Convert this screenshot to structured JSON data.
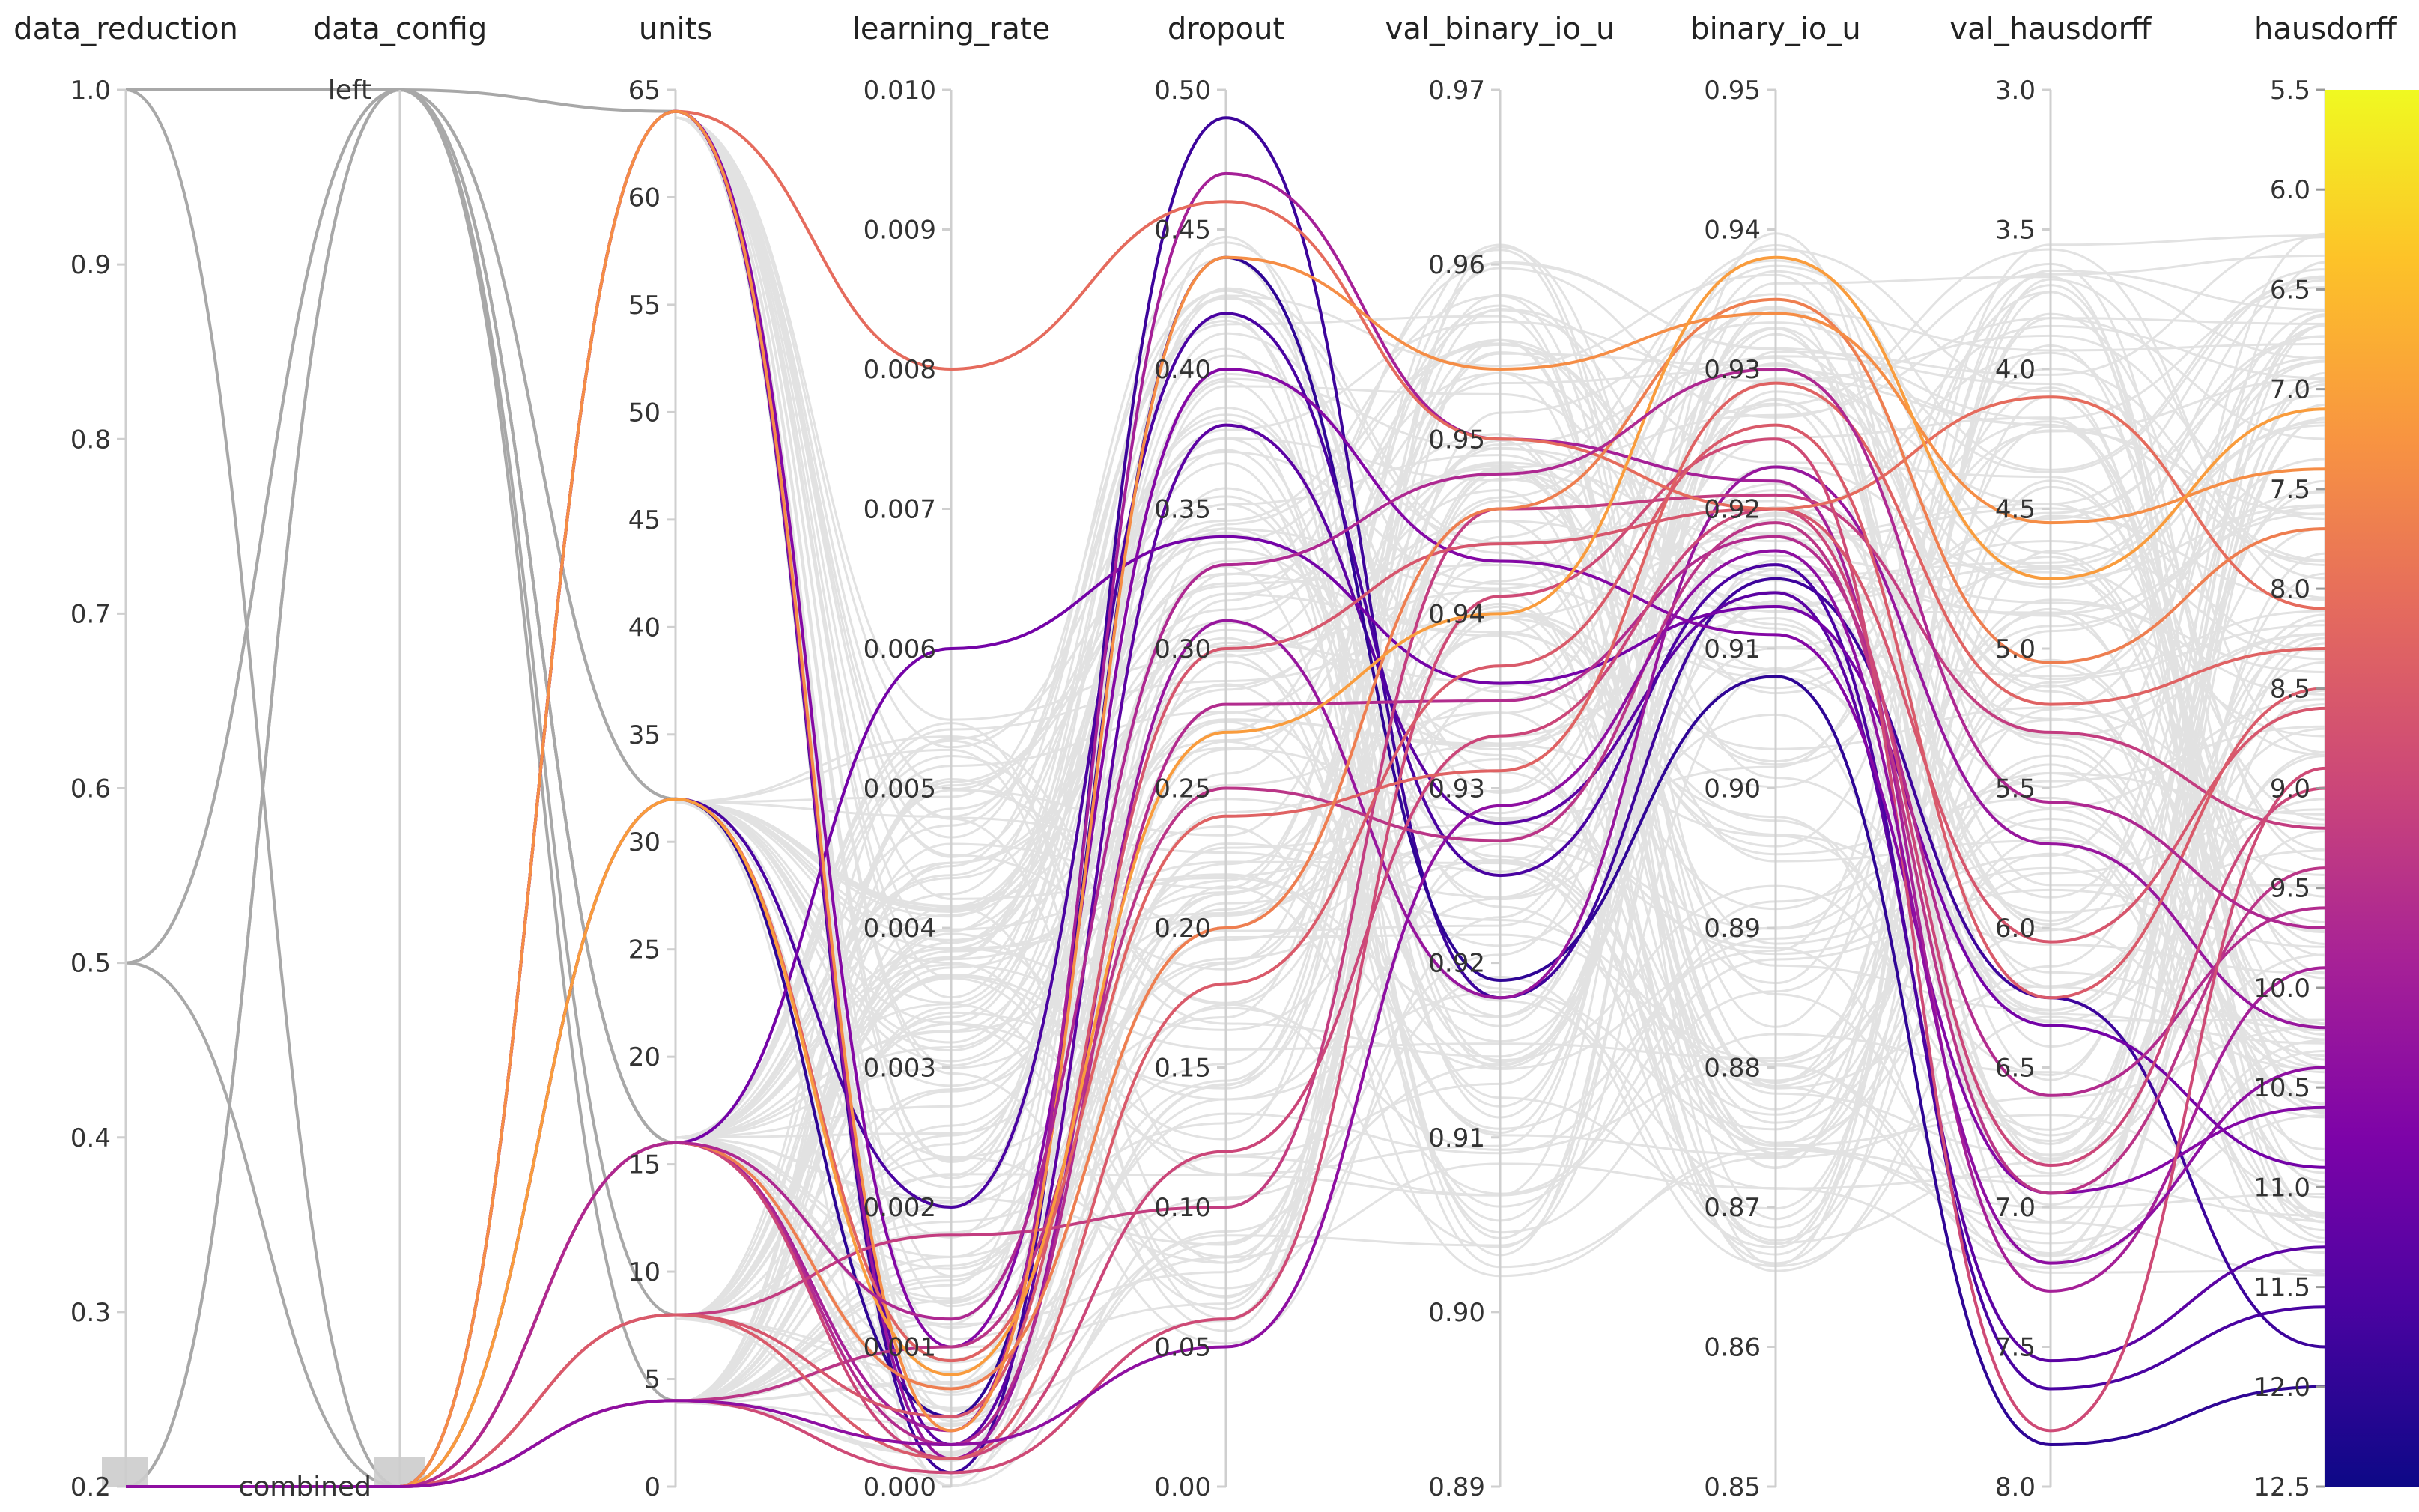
{
  "chart_data": {
    "type": "parallel_coordinates",
    "color_metric": "hausdorff",
    "colormap": "plasma",
    "colorbar_range": [
      5.5,
      12.5
    ],
    "axes": [
      {
        "key": "data_reduction",
        "title": "data_reduction",
        "domain": [
          0.2,
          1.0
        ],
        "ticks": [
          "1.0",
          "0.9",
          "0.8",
          "0.7",
          "0.6",
          "0.5",
          "0.4",
          "0.3",
          "0.2"
        ]
      },
      {
        "key": "data_config",
        "title": "data_config",
        "categorical": true,
        "categories": [
          "left",
          "combined"
        ]
      },
      {
        "key": "units",
        "title": "units",
        "domain": [
          0,
          65
        ],
        "ticks": [
          "65",
          "60",
          "55",
          "50",
          "45",
          "40",
          "35",
          "30",
          "25",
          "20",
          "15",
          "10",
          "5",
          "0"
        ]
      },
      {
        "key": "learning_rate",
        "title": "learning_rate",
        "domain": [
          0.0,
          0.01
        ],
        "ticks": [
          "0.010",
          "0.009",
          "0.008",
          "0.007",
          "0.006",
          "0.005",
          "0.004",
          "0.003",
          "0.002",
          "0.001",
          "0.000"
        ]
      },
      {
        "key": "dropout",
        "title": "dropout",
        "domain": [
          0.0,
          0.5
        ],
        "ticks": [
          "0.50",
          "0.45",
          "0.40",
          "0.35",
          "0.30",
          "0.25",
          "0.20",
          "0.15",
          "0.10",
          "0.05",
          "0.00"
        ]
      },
      {
        "key": "val_binary_io_u",
        "title": "val_binary_io_u",
        "domain": [
          0.89,
          0.97
        ],
        "ticks": [
          "0.97",
          "0.96",
          "0.95",
          "0.94",
          "0.93",
          "0.92",
          "0.91",
          "0.90",
          "0.89"
        ]
      },
      {
        "key": "binary_io_u",
        "title": "binary_io_u",
        "domain": [
          0.85,
          0.95
        ],
        "ticks": [
          "0.95",
          "0.94",
          "0.93",
          "0.92",
          "0.91",
          "0.90",
          "0.89",
          "0.88",
          "0.87",
          "0.86",
          "0.85"
        ]
      },
      {
        "key": "val_hausdorff",
        "title": "val_hausdorff",
        "domain": [
          3.0,
          8.0
        ],
        "inverted": true,
        "ticks": [
          "3.0",
          "3.5",
          "4.0",
          "4.5",
          "5.0",
          "5.5",
          "6.0",
          "6.5",
          "7.0",
          "7.5",
          "8.0"
        ]
      },
      {
        "key": "hausdorff",
        "title": "hausdorff",
        "domain": [
          5.5,
          12.5
        ],
        "inverted": true,
        "ticks": [
          "5.5",
          "6.0",
          "6.5",
          "7.0",
          "7.5",
          "8.0",
          "8.5",
          "9.0",
          "9.5",
          "10.0",
          "10.5",
          "11.0",
          "11.5",
          "12.0",
          "12.5"
        ]
      }
    ],
    "highlighted_runs": [
      [
        0.2,
        "combined",
        64,
        0.0001,
        0.49,
        0.918,
        0.915,
        6.25,
        11.8
      ],
      [
        0.2,
        "combined",
        64,
        0.0003,
        0.38,
        0.928,
        0.914,
        7.55,
        11.3
      ],
      [
        0.2,
        "combined",
        32,
        0.0005,
        0.44,
        0.919,
        0.908,
        7.85,
        12.0
      ],
      [
        0.2,
        "combined",
        32,
        0.002,
        0.42,
        0.925,
        0.916,
        7.65,
        11.6
      ],
      [
        0.2,
        "combined",
        16,
        0.006,
        0.34,
        0.936,
        0.913,
        6.35,
        10.9
      ],
      [
        0.2,
        "combined",
        64,
        0.001,
        0.4,
        0.943,
        0.911,
        6.95,
        10.6
      ],
      [
        0.2,
        "combined",
        16,
        0.0004,
        0.47,
        0.95,
        0.922,
        7.3,
        9.9
      ],
      [
        0.2,
        "combined",
        64,
        0.0002,
        0.31,
        0.918,
        0.923,
        5.7,
        10.2
      ],
      [
        0.2,
        "combined",
        16,
        0.0003,
        0.28,
        0.935,
        0.918,
        6.6,
        9.6
      ],
      [
        0.2,
        "combined",
        4,
        0.001,
        0.25,
        0.927,
        0.919,
        6.95,
        9.4
      ],
      [
        0.2,
        "combined",
        8,
        0.0018,
        0.1,
        0.946,
        0.921,
        5.3,
        9.2
      ],
      [
        0.2,
        "combined",
        16,
        0.0002,
        0.12,
        0.933,
        0.92,
        6.85,
        9.0
      ],
      [
        0.2,
        "combined",
        4,
        0.0001,
        0.06,
        0.941,
        0.925,
        7.8,
        8.9
      ],
      [
        0.2,
        "combined",
        8,
        0.0005,
        0.3,
        0.944,
        0.92,
        6.05,
        8.6
      ],
      [
        0.2,
        "combined",
        64,
        0.008,
        0.46,
        0.95,
        0.92,
        4.1,
        8.1
      ],
      [
        0.2,
        "combined",
        32,
        0.0009,
        0.24,
        0.931,
        0.929,
        5.2,
        8.3
      ],
      [
        0.2,
        "combined",
        16,
        0.0007,
        0.2,
        0.946,
        0.935,
        5.05,
        7.7
      ],
      [
        0.2,
        "combined",
        64,
        0.0004,
        0.44,
        0.954,
        0.934,
        4.55,
        7.4
      ],
      [
        0.2,
        "combined",
        32,
        0.0008,
        0.27,
        0.94,
        0.938,
        4.75,
        7.1
      ],
      [
        0.2,
        "combined",
        8,
        0.0002,
        0.18,
        0.937,
        0.926,
        6.25,
        8.5
      ],
      [
        0.2,
        "combined",
        16,
        0.0012,
        0.33,
        0.948,
        0.93,
        5.55,
        9.7
      ],
      [
        0.2,
        "combined",
        4,
        0.0003,
        0.05,
        0.929,
        0.917,
        7.2,
        10.4
      ]
    ]
  }
}
